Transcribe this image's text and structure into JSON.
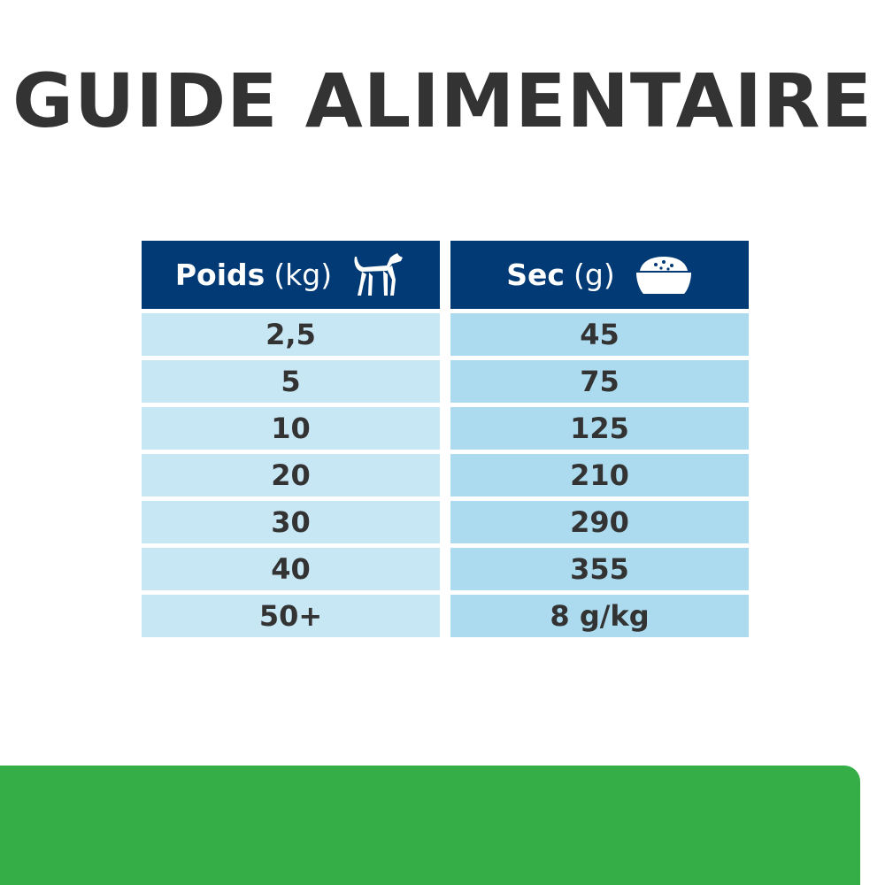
{
  "title": "GUIDE ALIMENTAIRE",
  "table": {
    "headers": [
      {
        "label": "Poids",
        "unit": "(kg)",
        "icon": "dog-icon"
      },
      {
        "label": "Sec",
        "unit": "(g)",
        "icon": "food-bowl-icon"
      }
    ],
    "rows": [
      [
        "2,5",
        "45"
      ],
      [
        "5",
        "75"
      ],
      [
        "10",
        "125"
      ],
      [
        "20",
        "210"
      ],
      [
        "30",
        "290"
      ],
      [
        "40",
        "355"
      ],
      [
        "50+",
        "8 g/kg"
      ]
    ]
  },
  "colors": {
    "header": "#023a76",
    "cell_left": "#c8e7f5",
    "cell_right": "#acdbef",
    "footer_band": "#35ae48"
  }
}
